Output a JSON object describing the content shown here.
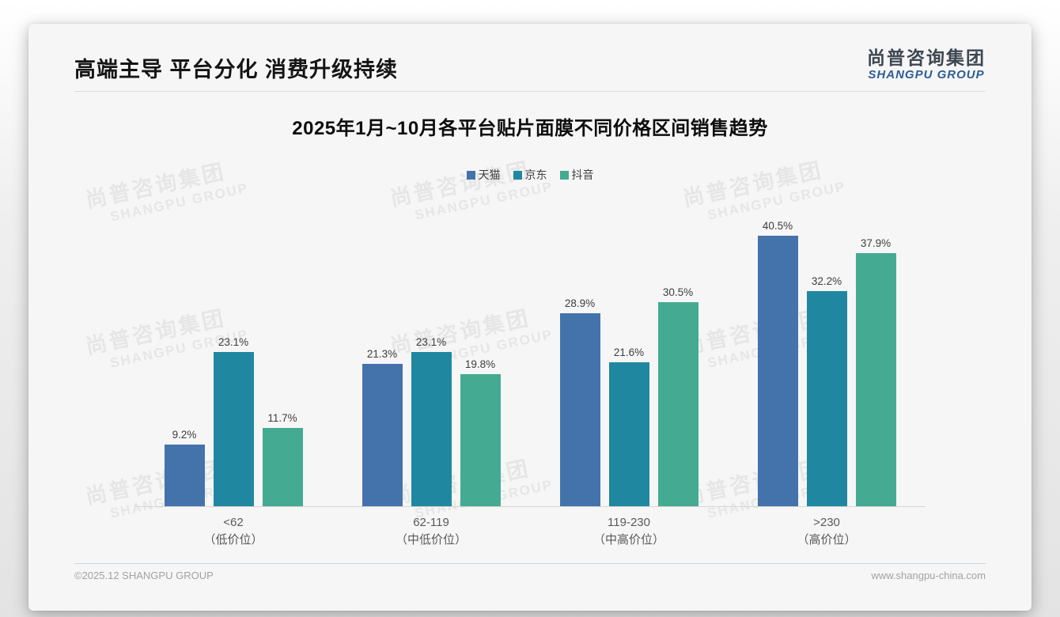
{
  "header": {
    "title": "高端主导 平台分化 消费升级持续",
    "logo_cn": "尚普咨询集团",
    "logo_en": "SHANGPU GROUP"
  },
  "watermark": {
    "line1": "尚普咨询集团",
    "line2": "SHANGPU GROUP"
  },
  "chart_data": {
    "type": "bar",
    "title": "2025年1月~10月各平台贴片面膜不同价格区间销售趋势",
    "categories": [
      {
        "range": "<62",
        "tier": "（低价位）"
      },
      {
        "range": "62-119",
        "tier": "（中低价位）"
      },
      {
        "range": "119-230",
        "tier": "（中高价位）"
      },
      {
        "range": ">230",
        "tier": "（高价位）"
      }
    ],
    "series": [
      {
        "name": "天猫",
        "color": "#4473AC",
        "values": [
          9.2,
          21.3,
          28.9,
          40.5
        ]
      },
      {
        "name": "京东",
        "color": "#1F88A0",
        "values": [
          23.1,
          23.1,
          21.6,
          32.2
        ]
      },
      {
        "name": "抖音",
        "color": "#44AB92",
        "values": [
          11.7,
          19.8,
          30.5,
          37.9
        ]
      }
    ],
    "value_suffix": "%",
    "xlabel": "",
    "ylabel": "",
    "ylim": [
      0,
      45
    ],
    "grid": false,
    "legend_position": "top"
  },
  "footer": {
    "left": "©2025.12 SHANGPU GROUP",
    "right": "www.shangpu-china.com"
  }
}
